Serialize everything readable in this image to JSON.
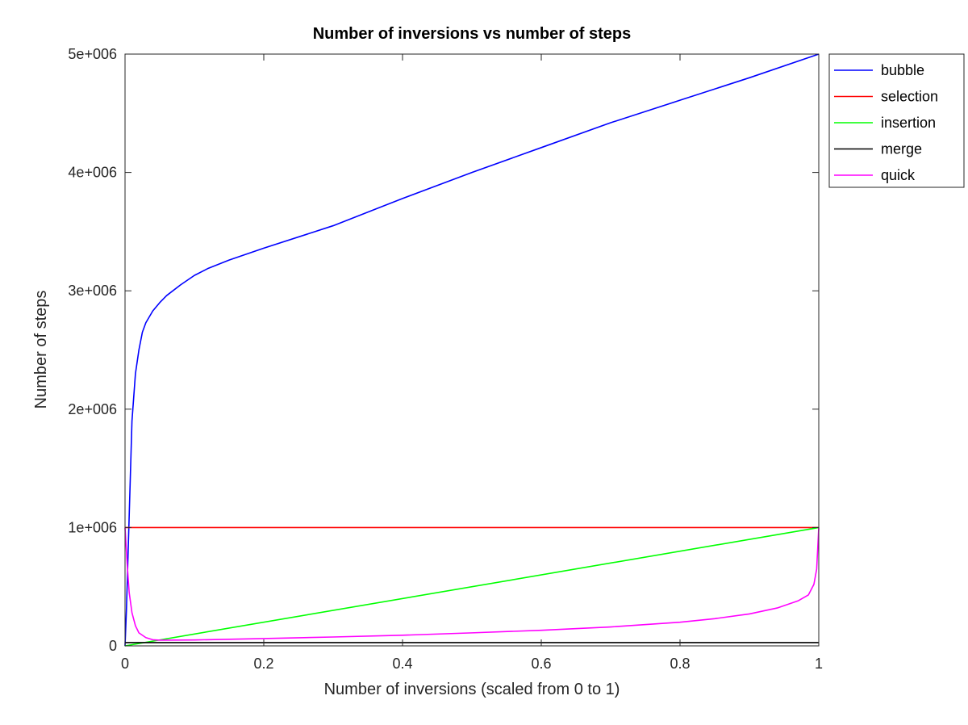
{
  "chart_data": {
    "type": "line",
    "title": "Number of inversions vs number of steps",
    "xlabel": "Number of inversions (scaled from 0 to 1)",
    "ylabel": "Number of steps",
    "xlim": [
      0,
      1
    ],
    "ylim": [
      0,
      5000000
    ],
    "x_ticks": [
      0,
      0.2,
      0.4,
      0.6,
      0.8,
      1
    ],
    "x_tick_labels": [
      "0",
      "0.2",
      "0.4",
      "0.6",
      "0.8",
      "1"
    ],
    "y_ticks": [
      0,
      1000000,
      2000000,
      3000000,
      4000000,
      5000000
    ],
    "y_tick_labels": [
      "0",
      "1e+006",
      "2e+006",
      "3e+006",
      "4e+006",
      "5e+006"
    ],
    "grid": false,
    "legend_position": "outside-top-right",
    "series": [
      {
        "name": "bubble",
        "color": "#0000ff",
        "points": [
          [
            0,
            0
          ],
          [
            0.002,
            300000
          ],
          [
            0.005,
            900000
          ],
          [
            0.008,
            1500000
          ],
          [
            0.01,
            1900000
          ],
          [
            0.015,
            2300000
          ],
          [
            0.02,
            2500000
          ],
          [
            0.025,
            2650000
          ],
          [
            0.03,
            2730000
          ],
          [
            0.04,
            2830000
          ],
          [
            0.05,
            2900000
          ],
          [
            0.06,
            2960000
          ],
          [
            0.08,
            3050000
          ],
          [
            0.1,
            3130000
          ],
          [
            0.12,
            3190000
          ],
          [
            0.15,
            3260000
          ],
          [
            0.2,
            3360000
          ],
          [
            0.3,
            3550000
          ],
          [
            0.4,
            3780000
          ],
          [
            0.5,
            4000000
          ],
          [
            0.6,
            4210000
          ],
          [
            0.7,
            4420000
          ],
          [
            0.8,
            4610000
          ],
          [
            0.9,
            4800000
          ],
          [
            1.0,
            5000000
          ]
        ]
      },
      {
        "name": "selection",
        "color": "#ff0000",
        "points": [
          [
            0,
            1000000
          ],
          [
            1.0,
            1000000
          ]
        ]
      },
      {
        "name": "insertion",
        "color": "#00ff00",
        "points": [
          [
            0,
            0
          ],
          [
            1.0,
            1000000
          ]
        ]
      },
      {
        "name": "merge",
        "color": "#000000",
        "points": [
          [
            0,
            28000
          ],
          [
            1.0,
            28000
          ]
        ]
      },
      {
        "name": "quick",
        "color": "#ff00ff",
        "points": [
          [
            0,
            1000000
          ],
          [
            0.003,
            700000
          ],
          [
            0.006,
            450000
          ],
          [
            0.01,
            280000
          ],
          [
            0.015,
            170000
          ],
          [
            0.02,
            110000
          ],
          [
            0.03,
            70000
          ],
          [
            0.04,
            52000
          ],
          [
            0.05,
            48000
          ],
          [
            0.1,
            50000
          ],
          [
            0.2,
            62000
          ],
          [
            0.3,
            75000
          ],
          [
            0.4,
            90000
          ],
          [
            0.5,
            110000
          ],
          [
            0.6,
            132000
          ],
          [
            0.7,
            160000
          ],
          [
            0.8,
            200000
          ],
          [
            0.85,
            230000
          ],
          [
            0.9,
            270000
          ],
          [
            0.94,
            320000
          ],
          [
            0.97,
            380000
          ],
          [
            0.985,
            430000
          ],
          [
            0.993,
            520000
          ],
          [
            0.997,
            650000
          ],
          [
            1.0,
            1000000
          ]
        ]
      }
    ]
  }
}
